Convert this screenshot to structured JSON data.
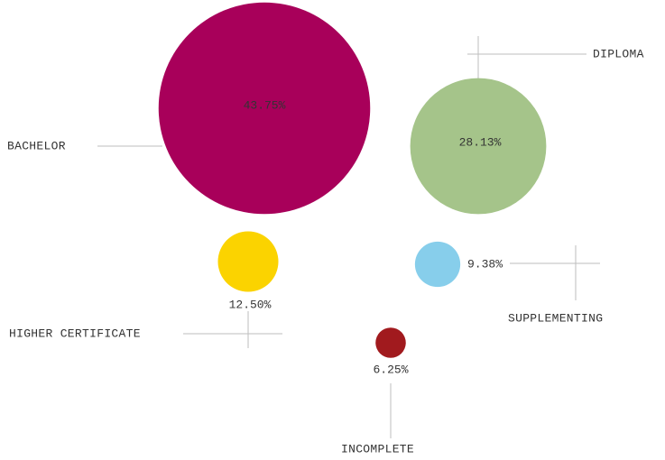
{
  "chart_data": {
    "type": "bubble",
    "categories": [
      "BACHELOR",
      "DIPLOMA",
      "HIGHER CERTIFICATE",
      "SUPPLEMENTING",
      "INCOMPLETE"
    ],
    "values": [
      43.75,
      28.13,
      12.5,
      9.38,
      6.25
    ],
    "value_labels": [
      "43.75%",
      "28.13%",
      "12.50%",
      "9.38%",
      "6.25%"
    ],
    "colors": [
      "#a8005a",
      "#a5c48a",
      "#fbd300",
      "#87ceeb",
      "#a11a1e"
    ]
  }
}
